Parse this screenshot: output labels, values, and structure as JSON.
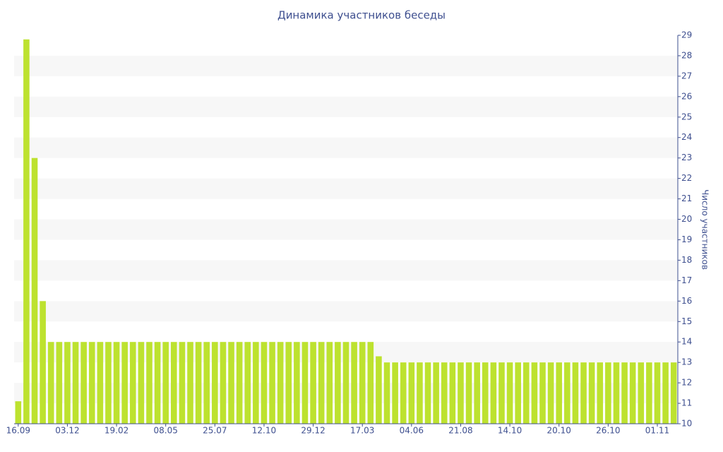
{
  "chart_data": {
    "type": "bar",
    "title": "Динамика участников беседы",
    "y_axis_label": "Число участников",
    "y_axis_side": "right",
    "categories": [
      "16.09",
      null,
      null,
      null,
      null,
      null,
      "03.12",
      null,
      null,
      null,
      null,
      null,
      "19.02",
      null,
      null,
      null,
      null,
      null,
      "08.05",
      null,
      null,
      null,
      null,
      null,
      "25.07",
      null,
      null,
      null,
      null,
      null,
      "12.10",
      null,
      null,
      null,
      null,
      null,
      "29.12",
      null,
      null,
      null,
      null,
      null,
      "17.03",
      null,
      null,
      null,
      null,
      null,
      "04.06",
      null,
      null,
      null,
      null,
      null,
      "21.08",
      null,
      null,
      null,
      null,
      null,
      "14.10",
      null,
      null,
      null,
      null,
      null,
      "20.10",
      null,
      null,
      null,
      null,
      null,
      "26.10",
      null,
      null,
      null,
      null,
      null,
      "01.11",
      null,
      null
    ],
    "values": [
      11.1,
      28.8,
      23,
      16,
      14,
      14,
      14,
      14,
      14,
      14,
      14,
      14,
      14,
      14,
      14,
      14,
      14,
      14,
      14,
      14,
      14,
      14,
      14,
      14,
      14,
      14,
      14,
      14,
      14,
      14,
      14,
      14,
      14,
      14,
      14,
      14,
      14,
      14,
      14,
      14,
      14,
      14,
      14,
      14,
      13.3,
      13,
      13,
      13,
      13,
      13,
      13,
      13,
      13,
      13,
      13,
      13,
      13,
      13,
      13,
      13,
      13,
      13,
      13,
      13,
      13,
      13,
      13,
      13,
      13,
      13,
      13,
      13,
      13,
      13,
      13,
      13,
      13,
      13,
      13,
      13,
      13
    ],
    "color": "#bde22f",
    "ylim": [
      10,
      29
    ],
    "yticks": [
      10,
      11,
      12,
      13,
      14,
      15,
      16,
      17,
      18,
      19,
      20,
      21,
      22,
      23,
      24,
      25,
      26,
      27,
      28,
      29
    ],
    "grid": "alternating-bands"
  }
}
